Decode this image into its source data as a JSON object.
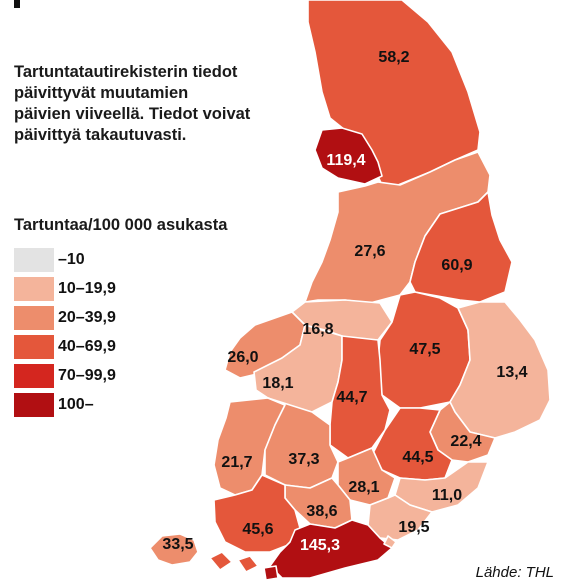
{
  "note_lines": [
    "Tartuntatautirekisterin tiedot",
    "päivittyvät muutamien",
    "päivien viiveellä. Tiedot voivat",
    "päivittyä takautuvasti."
  ],
  "legend": {
    "title": "Tartuntaa/100 000 asukasta",
    "classes": [
      {
        "label": "–10",
        "color": "#e3e3e3"
      },
      {
        "label": "10–19,9",
        "color": "#f4b49b"
      },
      {
        "label": "20–39,9",
        "color": "#ed8d6c"
      },
      {
        "label": "40–69,9",
        "color": "#e4573b"
      },
      {
        "label": "70–99,9",
        "color": "#d4261f"
      },
      {
        "label": "100–",
        "color": "#b10f12"
      }
    ]
  },
  "regions": [
    {
      "name": "lappi",
      "value": "58,2",
      "class": 3
    },
    {
      "name": "lansi-pohja",
      "value": "119,4",
      "class": 5
    },
    {
      "name": "pohjois-pohjanmaa",
      "value": "27,6",
      "class": 2
    },
    {
      "name": "kainuu",
      "value": "60,9",
      "class": 3
    },
    {
      "name": "keski-pohjanmaa",
      "value": "16,8",
      "class": 1
    },
    {
      "name": "vaasa",
      "value": "26,0",
      "class": 2
    },
    {
      "name": "etela-pohjanmaa",
      "value": "18,1",
      "class": 1
    },
    {
      "name": "pohjois-savo",
      "value": "47,5",
      "class": 3
    },
    {
      "name": "pohjois-karjala",
      "value": "13,4",
      "class": 1
    },
    {
      "name": "keski-suomi",
      "value": "44,7",
      "class": 3
    },
    {
      "name": "satakunta",
      "value": "21,7",
      "class": 2
    },
    {
      "name": "pirkanmaa",
      "value": "37,3",
      "class": 2
    },
    {
      "name": "ita-savo",
      "value": "22,4",
      "class": 2
    },
    {
      "name": "etela-savo",
      "value": "44,5",
      "class": 3
    },
    {
      "name": "paijat-hame",
      "value": "28,1",
      "class": 2
    },
    {
      "name": "kanta-hame",
      "value": "38,6",
      "class": 2
    },
    {
      "name": "etela-karjala",
      "value": "11,0",
      "class": 1
    },
    {
      "name": "kymenlaakso",
      "value": "19,5",
      "class": 1
    },
    {
      "name": "varsinais-suomi",
      "value": "45,6",
      "class": 3
    },
    {
      "name": "ahvenanmaa",
      "value": "33,5",
      "class": 2
    },
    {
      "name": "hus",
      "value": "145,3",
      "class": 5
    }
  ],
  "source": "Lähde: THL"
}
